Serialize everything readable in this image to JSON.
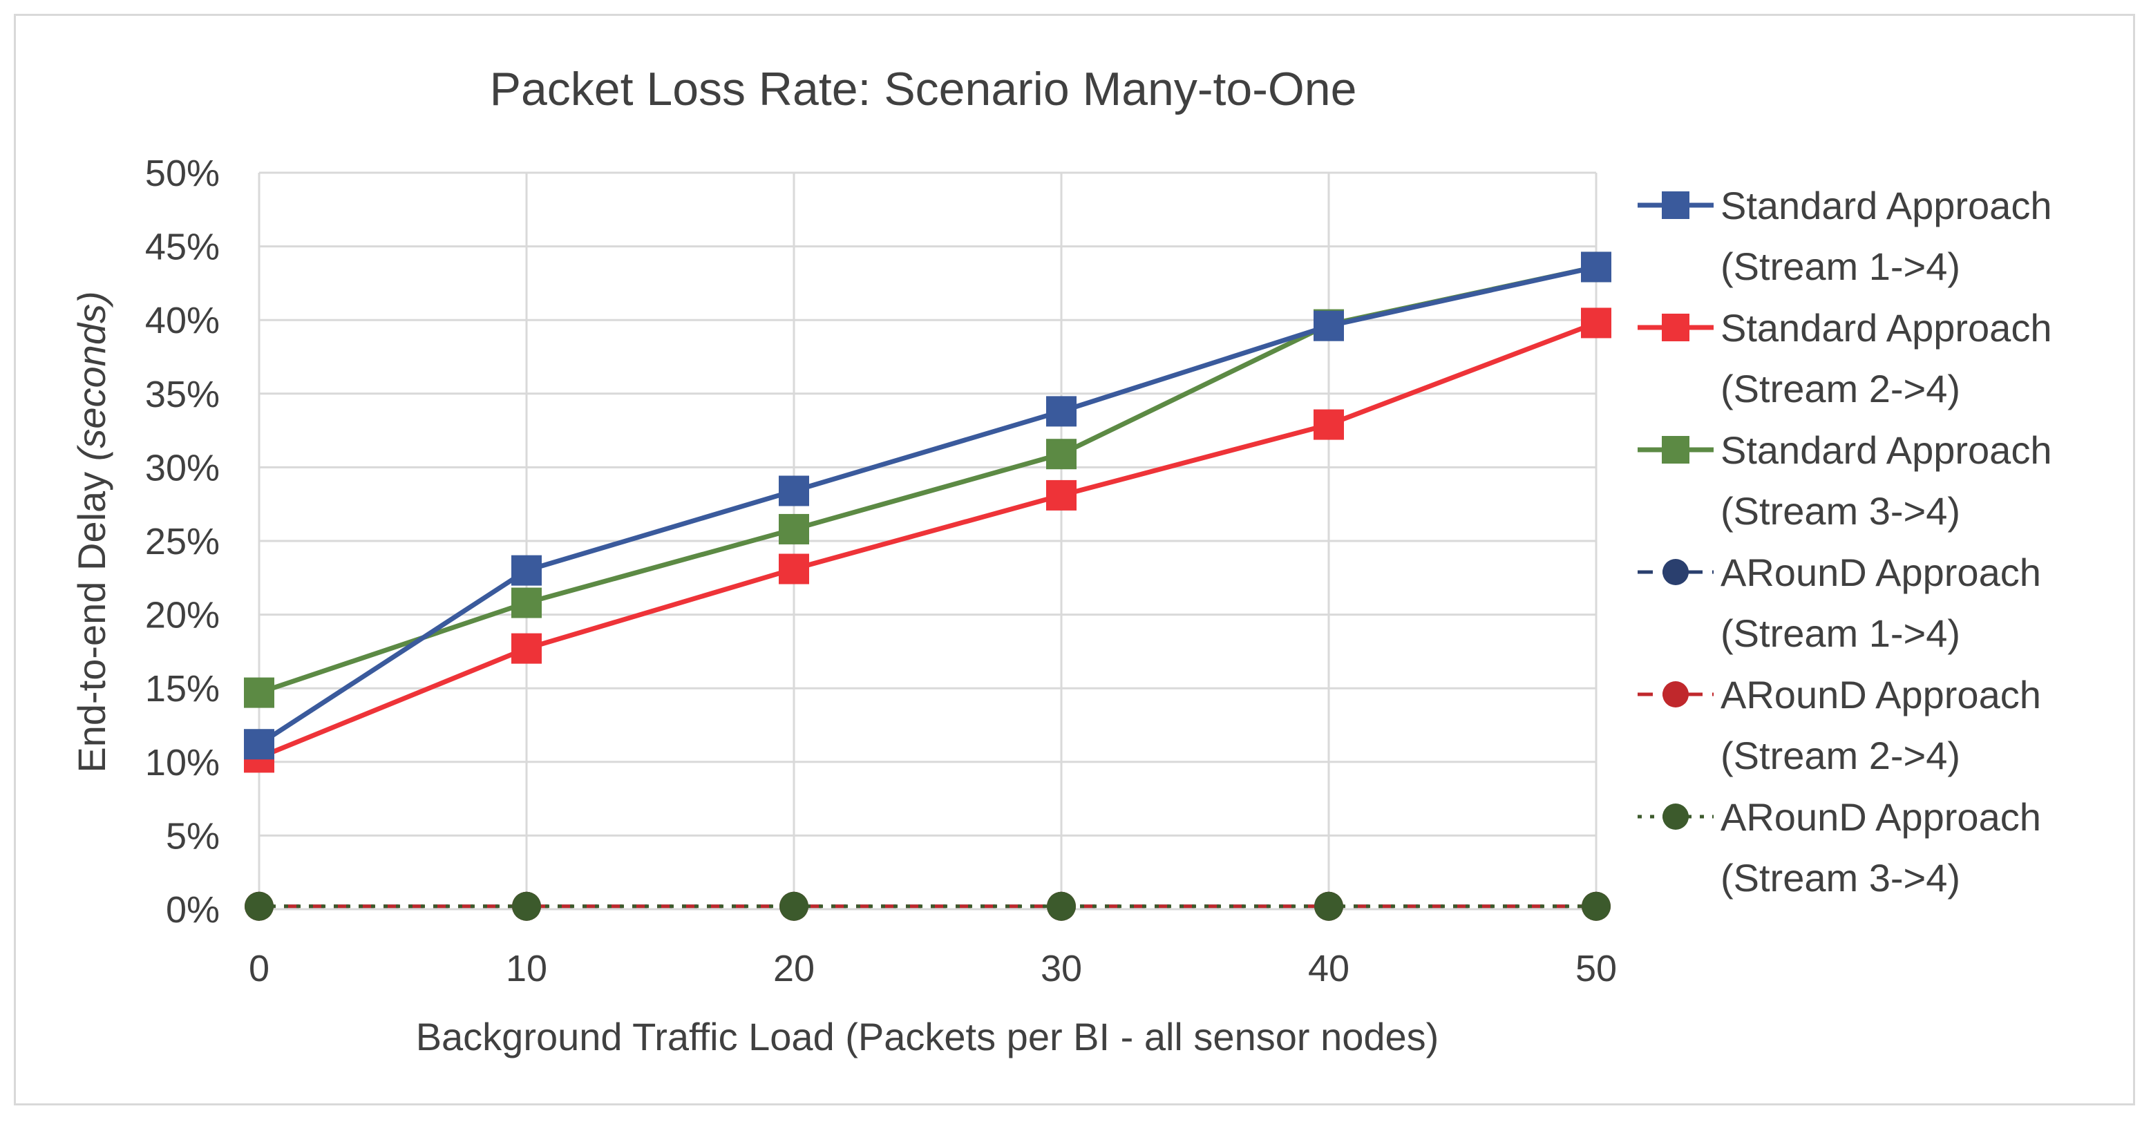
{
  "chart_data": {
    "type": "line",
    "title": "Packet Loss Rate: Scenario Many-to-One",
    "xlabel": "Background Traffic Load (Packets per BI - all sensor nodes)",
    "ylabel_main": "End-to-end Delay ",
    "ylabel_italic": "(seconds)",
    "x": [
      0,
      10,
      20,
      30,
      40,
      50
    ],
    "ylim": [
      0,
      50
    ],
    "yticks": [
      0,
      5,
      10,
      15,
      20,
      25,
      30,
      35,
      40,
      45,
      50
    ],
    "ytick_labels": [
      "0%",
      "5%",
      "10%",
      "15%",
      "20%",
      "25%",
      "30%",
      "35%",
      "40%",
      "45%",
      "50%"
    ],
    "xtick_labels": [
      "0",
      "10",
      "20",
      "30",
      "40",
      "50"
    ],
    "grid": true,
    "legend_position": "right",
    "series": [
      {
        "name_line1": "Standard Approach",
        "name_line2": "(Stream 1->4)",
        "values": [
          11.2,
          23.0,
          28.4,
          33.8,
          39.6,
          43.6
        ],
        "color": "#3a5a9c",
        "marker": "square",
        "dash": "solid"
      },
      {
        "name_line1": "Standard Approach",
        "name_line2": "(Stream 2->4)",
        "values": [
          10.3,
          17.7,
          23.1,
          28.1,
          32.9,
          39.8
        ],
        "color": "#ee3338",
        "marker": "square",
        "dash": "solid"
      },
      {
        "name_line1": "Standard Approach",
        "name_line2": "(Stream 3->4)",
        "values": [
          14.7,
          20.8,
          25.8,
          30.9,
          39.7,
          43.6
        ],
        "color": "#5c8a44",
        "marker": "square",
        "dash": "solid"
      },
      {
        "name_line1": "ARounD Approach",
        "name_line2": "(Stream 1->4)",
        "values": [
          0.2,
          0.2,
          0.2,
          0.2,
          0.2,
          0.2
        ],
        "color": "#2a3f6e",
        "marker": "circle",
        "dash": "dash"
      },
      {
        "name_line1": "ARounD Approach",
        "name_line2": "(Stream 2->4)",
        "values": [
          0.2,
          0.2,
          0.2,
          0.2,
          0.2,
          0.2
        ],
        "color": "#c0282c",
        "marker": "circle",
        "dash": "dash"
      },
      {
        "name_line1": "ARounD Approach",
        "name_line2": "(Stream 3->4)",
        "values": [
          0.2,
          0.2,
          0.2,
          0.2,
          0.2,
          0.2
        ],
        "color": "#3c5a2c",
        "marker": "circle",
        "dash": "dot"
      }
    ]
  }
}
